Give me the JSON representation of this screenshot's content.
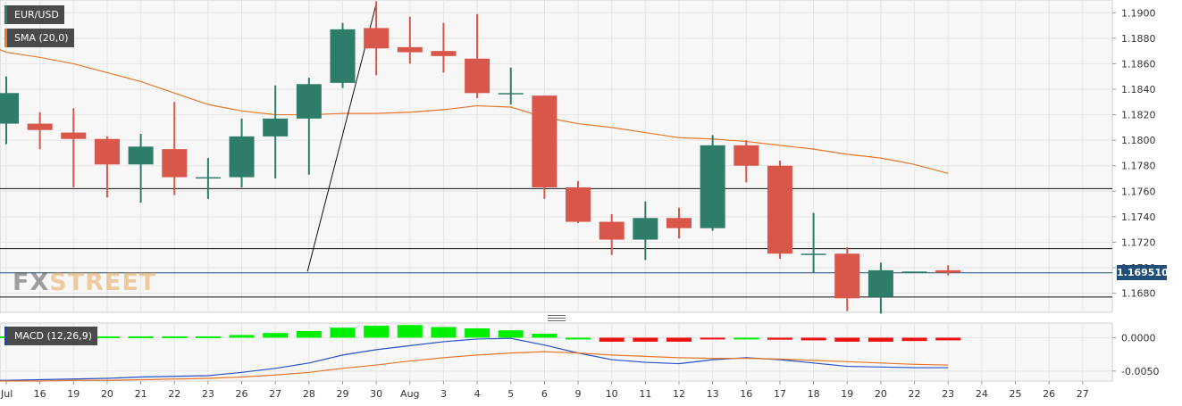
{
  "legend": {
    "symbol": "EUR/USD",
    "symbol_color": "#2e7d6b",
    "sma": "SMA (20,0)",
    "sma_color": "#e8782a",
    "macd": "MACD (12,26,9)",
    "macd_color": "#1f3fbf"
  },
  "last_price": "1.169510",
  "watermark": {
    "part1": "FX",
    "part2": "STREET"
  },
  "colors": {
    "bull": "#2e7d6b",
    "bear": "#d9574a",
    "sma": "#e8782a",
    "macd_line": "#2850c8",
    "signal_line": "#e8782a",
    "hist_pos": "#00ee00",
    "hist_neg": "#ee1111",
    "grid": "#e6e6e6",
    "plot_bg": "#f7f7f7"
  },
  "chart_data": {
    "type": "candlestick",
    "x_labels": [
      "Jul",
      "16",
      "19",
      "20",
      "21",
      "22",
      "23",
      "26",
      "27",
      "28",
      "29",
      "30",
      "Aug",
      "3",
      "4",
      "5",
      "6",
      "9",
      "10",
      "11",
      "12",
      "13",
      "16",
      "17",
      "18",
      "19",
      "20",
      "22",
      "23",
      "24",
      "25",
      "26",
      "27"
    ],
    "price_ticks": [
      "1.1900",
      "1.1880",
      "1.1860",
      "1.1840",
      "1.1820",
      "1.1800",
      "1.1780",
      "1.1760",
      "1.1740",
      "1.1720",
      "1.1700",
      "1.1680"
    ],
    "price_ylim": [
      1.1665,
      1.191
    ],
    "candles": [
      {
        "x": "Jul",
        "o": 1.1813,
        "h": 1.185,
        "l": 1.1797,
        "c": 1.1837
      },
      {
        "x": "16",
        "o": 1.1813,
        "h": 1.1822,
        "l": 1.1793,
        "c": 1.1808
      },
      {
        "x": "19",
        "o": 1.1806,
        "h": 1.1825,
        "l": 1.1763,
        "c": 1.1801
      },
      {
        "x": "20",
        "o": 1.1801,
        "h": 1.1803,
        "l": 1.1755,
        "c": 1.1781
      },
      {
        "x": "21",
        "o": 1.1781,
        "h": 1.1805,
        "l": 1.1751,
        "c": 1.1795
      },
      {
        "x": "22",
        "o": 1.1793,
        "h": 1.183,
        "l": 1.1757,
        "c": 1.1771
      },
      {
        "x": "23",
        "o": 1.1771,
        "h": 1.1786,
        "l": 1.1754,
        "c": 1.1771
      },
      {
        "x": "26",
        "o": 1.1771,
        "h": 1.1817,
        "l": 1.1763,
        "c": 1.1803
      },
      {
        "x": "27",
        "o": 1.1803,
        "h": 1.1843,
        "l": 1.177,
        "c": 1.1817
      },
      {
        "x": "28",
        "o": 1.1817,
        "h": 1.1849,
        "l": 1.1773,
        "c": 1.1844
      },
      {
        "x": "29",
        "o": 1.1845,
        "h": 1.1892,
        "l": 1.1841,
        "c": 1.1887
      },
      {
        "x": "30",
        "o": 1.1888,
        "h": 1.1909,
        "l": 1.1851,
        "c": 1.1872
      },
      {
        "x": "Aug",
        "o": 1.1873,
        "h": 1.1897,
        "l": 1.186,
        "c": 1.1869
      },
      {
        "x": "3",
        "o": 1.187,
        "h": 1.1892,
        "l": 1.1853,
        "c": 1.1866
      },
      {
        "x": "4",
        "o": 1.1864,
        "h": 1.1899,
        "l": 1.1833,
        "c": 1.1837
      },
      {
        "x": "5",
        "o": 1.1837,
        "h": 1.1857,
        "l": 1.1828,
        "c": 1.1837
      },
      {
        "x": "6",
        "o": 1.1835,
        "h": 1.1835,
        "l": 1.1754,
        "c": 1.1763
      },
      {
        "x": "9",
        "o": 1.1763,
        "h": 1.1768,
        "l": 1.1735,
        "c": 1.1736
      },
      {
        "x": "10",
        "o": 1.1736,
        "h": 1.1742,
        "l": 1.171,
        "c": 1.1722
      },
      {
        "x": "11",
        "o": 1.1722,
        "h": 1.1752,
        "l": 1.1706,
        "c": 1.1739
      },
      {
        "x": "12",
        "o": 1.1739,
        "h": 1.1747,
        "l": 1.1723,
        "c": 1.1731
      },
      {
        "x": "13",
        "o": 1.1731,
        "h": 1.1804,
        "l": 1.1729,
        "c": 1.1796
      },
      {
        "x": "16",
        "o": 1.1796,
        "h": 1.18,
        "l": 1.1767,
        "c": 1.178
      },
      {
        "x": "17",
        "o": 1.178,
        "h": 1.1784,
        "l": 1.1707,
        "c": 1.1711
      },
      {
        "x": "18",
        "o": 1.1711,
        "h": 1.1743,
        "l": 1.1696,
        "c": 1.1711
      },
      {
        "x": "19",
        "o": 1.1711,
        "h": 1.1716,
        "l": 1.1666,
        "c": 1.1676
      },
      {
        "x": "20",
        "o": 1.1677,
        "h": 1.1704,
        "l": 1.1664,
        "c": 1.1698
      },
      {
        "x": "22",
        "o": 1.1697,
        "h": 1.1697,
        "l": 1.1697,
        "c": 1.1697
      },
      {
        "x": "23",
        "o": 1.1698,
        "h": 1.1702,
        "l": 1.1694,
        "c": 1.1696
      }
    ],
    "sma": [
      {
        "x": "Jul",
        "y": 1.1869
      },
      {
        "x": "16",
        "y": 1.1865
      },
      {
        "x": "19",
        "y": 1.186
      },
      {
        "x": "20",
        "y": 1.1853
      },
      {
        "x": "21",
        "y": 1.1846
      },
      {
        "x": "22",
        "y": 1.1837
      },
      {
        "x": "23",
        "y": 1.1828
      },
      {
        "x": "26",
        "y": 1.1823
      },
      {
        "x": "27",
        "y": 1.182
      },
      {
        "x": "28",
        "y": 1.182
      },
      {
        "x": "29",
        "y": 1.1821
      },
      {
        "x": "30",
        "y": 1.1821
      },
      {
        "x": "Aug",
        "y": 1.1822
      },
      {
        "x": "3",
        "y": 1.1824
      },
      {
        "x": "4",
        "y": 1.1827
      },
      {
        "x": "5",
        "y": 1.1826
      },
      {
        "x": "6",
        "y": 1.1818
      },
      {
        "x": "9",
        "y": 1.1813
      },
      {
        "x": "10",
        "y": 1.181
      },
      {
        "x": "11",
        "y": 1.1806
      },
      {
        "x": "12",
        "y": 1.1802
      },
      {
        "x": "13",
        "y": 1.1801
      },
      {
        "x": "16",
        "y": 1.1799
      },
      {
        "x": "17",
        "y": 1.1796
      },
      {
        "x": "18",
        "y": 1.1793
      },
      {
        "x": "19",
        "y": 1.1789
      },
      {
        "x": "20",
        "y": 1.1786
      },
      {
        "x": "22",
        "y": 1.1781
      },
      {
        "x": "23",
        "y": 1.1774
      }
    ],
    "horizontal_levels": [
      1.1762,
      1.1715,
      1.1696,
      1.1677
    ],
    "trendline": [
      {
        "x": "30",
        "y": 1.1907
      },
      {
        "x": "27",
        "y": 1.1697
      }
    ],
    "macd": {
      "ticks": [
        "0.0000",
        "-0.0050"
      ],
      "ylim": [
        -0.0065,
        0.0022
      ],
      "histogram": [
        {
          "x": "Jul",
          "y": 0.0002
        },
        {
          "x": "16",
          "y": 0.0002
        },
        {
          "x": "19",
          "y": 0.0002
        },
        {
          "x": "20",
          "y": 0.0002
        },
        {
          "x": "21",
          "y": 0.0002
        },
        {
          "x": "22",
          "y": 0.0002
        },
        {
          "x": "23",
          "y": 0.0002
        },
        {
          "x": "26",
          "y": 0.0004
        },
        {
          "x": "27",
          "y": 0.0007
        },
        {
          "x": "28",
          "y": 0.001
        },
        {
          "x": "29",
          "y": 0.0015
        },
        {
          "x": "30",
          "y": 0.0018
        },
        {
          "x": "Aug",
          "y": 0.0019
        },
        {
          "x": "3",
          "y": 0.0016
        },
        {
          "x": "4",
          "y": 0.0014
        },
        {
          "x": "5",
          "y": 0.0011
        },
        {
          "x": "6",
          "y": 0.0006
        },
        {
          "x": "9",
          "y": 0.0
        },
        {
          "x": "10",
          "y": -0.0006
        },
        {
          "x": "11",
          "y": -0.0006
        },
        {
          "x": "12",
          "y": -0.0006
        },
        {
          "x": "13",
          "y": -0.0001
        },
        {
          "x": "16",
          "y": 0.0
        },
        {
          "x": "17",
          "y": -0.0003
        },
        {
          "x": "18",
          "y": -0.0004
        },
        {
          "x": "19",
          "y": -0.0006
        },
        {
          "x": "20",
          "y": -0.0006
        },
        {
          "x": "22",
          "y": -0.0005
        },
        {
          "x": "23",
          "y": -0.0004
        }
      ],
      "macd_line": [
        {
          "x": "Jul",
          "y": -0.0064
        },
        {
          "x": "16",
          "y": -0.0063
        },
        {
          "x": "19",
          "y": -0.0062
        },
        {
          "x": "20",
          "y": -0.0061
        },
        {
          "x": "21",
          "y": -0.0059
        },
        {
          "x": "22",
          "y": -0.0058
        },
        {
          "x": "23",
          "y": -0.0057
        },
        {
          "x": "26",
          "y": -0.0052
        },
        {
          "x": "27",
          "y": -0.0046
        },
        {
          "x": "28",
          "y": -0.0038
        },
        {
          "x": "29",
          "y": -0.0026
        },
        {
          "x": "30",
          "y": -0.0018
        },
        {
          "x": "Aug",
          "y": -0.0012
        },
        {
          "x": "3",
          "y": -0.0006
        },
        {
          "x": "4",
          "y": -0.0002
        },
        {
          "x": "5",
          "y": -0.0001
        },
        {
          "x": "6",
          "y": -0.0011
        },
        {
          "x": "9",
          "y": -0.0023
        },
        {
          "x": "10",
          "y": -0.0033
        },
        {
          "x": "11",
          "y": -0.0037
        },
        {
          "x": "12",
          "y": -0.0039
        },
        {
          "x": "13",
          "y": -0.0033
        },
        {
          "x": "16",
          "y": -0.003
        },
        {
          "x": "17",
          "y": -0.0033
        },
        {
          "x": "18",
          "y": -0.0038
        },
        {
          "x": "19",
          "y": -0.0043
        },
        {
          "x": "20",
          "y": -0.0044
        },
        {
          "x": "22",
          "y": -0.0045
        },
        {
          "x": "23",
          "y": -0.0045
        }
      ],
      "signal_line": [
        {
          "x": "Jul",
          "y": -0.0065
        },
        {
          "x": "16",
          "y": -0.0065
        },
        {
          "x": "19",
          "y": -0.0064
        },
        {
          "x": "20",
          "y": -0.0064
        },
        {
          "x": "21",
          "y": -0.0063
        },
        {
          "x": "22",
          "y": -0.0062
        },
        {
          "x": "23",
          "y": -0.0061
        },
        {
          "x": "26",
          "y": -0.0059
        },
        {
          "x": "27",
          "y": -0.0056
        },
        {
          "x": "28",
          "y": -0.0052
        },
        {
          "x": "29",
          "y": -0.0046
        },
        {
          "x": "30",
          "y": -0.0041
        },
        {
          "x": "Aug",
          "y": -0.0035
        },
        {
          "x": "3",
          "y": -0.003
        },
        {
          "x": "4",
          "y": -0.0026
        },
        {
          "x": "5",
          "y": -0.0023
        },
        {
          "x": "6",
          "y": -0.0021
        },
        {
          "x": "9",
          "y": -0.0023
        },
        {
          "x": "10",
          "y": -0.0026
        },
        {
          "x": "11",
          "y": -0.0028
        },
        {
          "x": "12",
          "y": -0.003
        },
        {
          "x": "13",
          "y": -0.0031
        },
        {
          "x": "16",
          "y": -0.0031
        },
        {
          "x": "17",
          "y": -0.0032
        },
        {
          "x": "18",
          "y": -0.0034
        },
        {
          "x": "19",
          "y": -0.0036
        },
        {
          "x": "20",
          "y": -0.0038
        },
        {
          "x": "22",
          "y": -0.004
        },
        {
          "x": "23",
          "y": -0.0041
        }
      ]
    }
  }
}
